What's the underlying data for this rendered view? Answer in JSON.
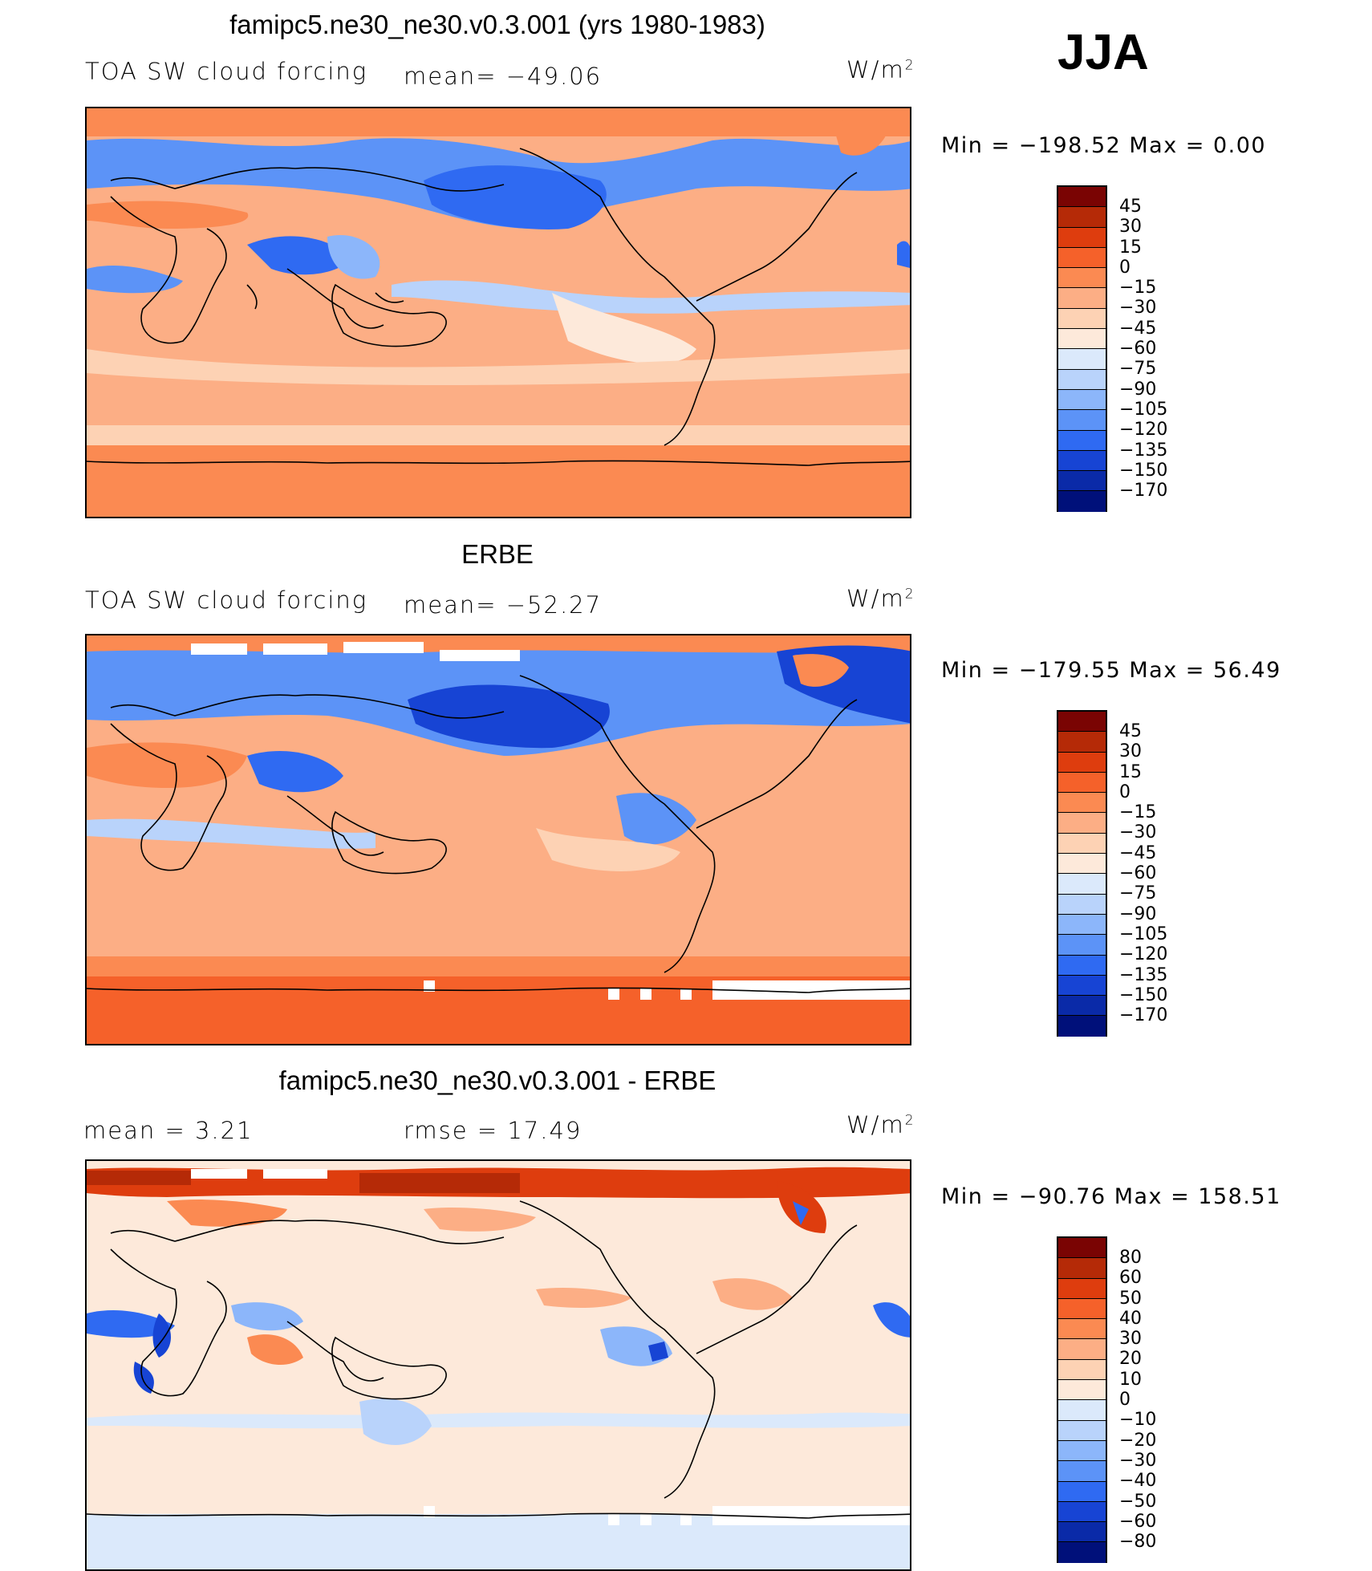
{
  "season": "JJA",
  "panels": [
    {
      "title": "famipc5.ne30_ne30.v0.3.001 (yrs 1980-1983)",
      "left_text": "TOA SW cloud forcing",
      "mid_text": "mean= −49.06",
      "units": "W/m",
      "units_sup": "2",
      "minmax": "Min = −198.52 Max = 0.00",
      "colorbar_labels": [
        "45",
        "30",
        "15",
        "0",
        "−15",
        "−30",
        "−45",
        "−60",
        "−75",
        "−90",
        "−105",
        "−120",
        "−135",
        "−150",
        "−170"
      ],
      "colorbar_colors": [
        "#7a0403",
        "#b52a07",
        "#de3d0e",
        "#f5612a",
        "#fb8a52",
        "#fcae85",
        "#fdd2b4",
        "#fde9da",
        "#dbe9fb",
        "#b9d3fb",
        "#8cb6fa",
        "#5c93f7",
        "#2f6af2",
        "#1744d4",
        "#0a2aa8",
        "#00107a"
      ]
    },
    {
      "title": "ERBE",
      "left_text": "TOA SW cloud forcing",
      "mid_text": "mean= −52.27",
      "units": "W/m",
      "units_sup": "2",
      "minmax": "Min = −179.55 Max = 56.49",
      "colorbar_labels": [
        "45",
        "30",
        "15",
        "0",
        "−15",
        "−30",
        "−45",
        "−60",
        "−75",
        "−90",
        "−105",
        "−120",
        "−135",
        "−150",
        "−170"
      ],
      "colorbar_colors": [
        "#7a0403",
        "#b52a07",
        "#de3d0e",
        "#f5612a",
        "#fb8a52",
        "#fcae85",
        "#fdd2b4",
        "#fde9da",
        "#dbe9fb",
        "#b9d3fb",
        "#8cb6fa",
        "#5c93f7",
        "#2f6af2",
        "#1744d4",
        "#0a2aa8",
        "#00107a"
      ]
    },
    {
      "title": "famipc5.ne30_ne30.v0.3.001 - ERBE",
      "left_text": "mean = 3.21",
      "mid_text": "rmse = 17.49",
      "units": "W/m",
      "units_sup": "2",
      "minmax": "Min = −90.76 Max = 158.51",
      "colorbar_labels": [
        "80",
        "60",
        "50",
        "40",
        "30",
        "20",
        "10",
        "0",
        "−10",
        "−20",
        "−30",
        "−40",
        "−50",
        "−60",
        "−80"
      ],
      "colorbar_colors": [
        "#7a0403",
        "#b52a07",
        "#de3d0e",
        "#f5612a",
        "#fb8a52",
        "#fcae85",
        "#fdd2b4",
        "#fde9da",
        "#dbe9fb",
        "#b9d3fb",
        "#8cb6fa",
        "#5c93f7",
        "#2f6af2",
        "#1744d4",
        "#0a2aa8",
        "#00107a"
      ]
    }
  ]
}
